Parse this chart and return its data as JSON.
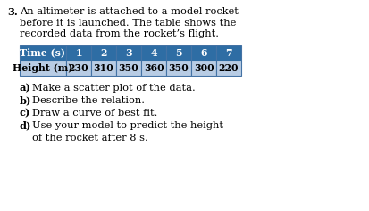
{
  "problem_number": "3.",
  "intro_text": [
    "An altimeter is attached to a model rocket",
    "before it is launched. The table shows the",
    "recorded data from the rocket’s flight."
  ],
  "table_header": [
    "Time (s)",
    "1",
    "2",
    "3",
    "4",
    "5",
    "6",
    "7"
  ],
  "table_row": [
    "Height (m)",
    "230",
    "310",
    "350",
    "360",
    "350",
    "300",
    "220"
  ],
  "header_bg": "#2E6DA4",
  "header_text_color": "#FFFFFF",
  "row_bg": "#B8CCE4",
  "row_text_color": "#000000",
  "border_color": "#4472A4",
  "questions": [
    {
      "label": "a)",
      "text": "Make a scatter plot of the data."
    },
    {
      "label": "b)",
      "text": "Describe the relation."
    },
    {
      "label": "c)",
      "text": "Draw a curve of best fit."
    },
    {
      "label": "d)",
      "text": "Use your model to predict the height\n    of the rocket after 8 s."
    }
  ],
  "bg_color": "#FFFFFF",
  "body_font_size": 8.2,
  "table_font_size": 7.8,
  "question_font_size": 8.2,
  "fig_width": 4.14,
  "fig_height": 2.37,
  "dpi": 100
}
